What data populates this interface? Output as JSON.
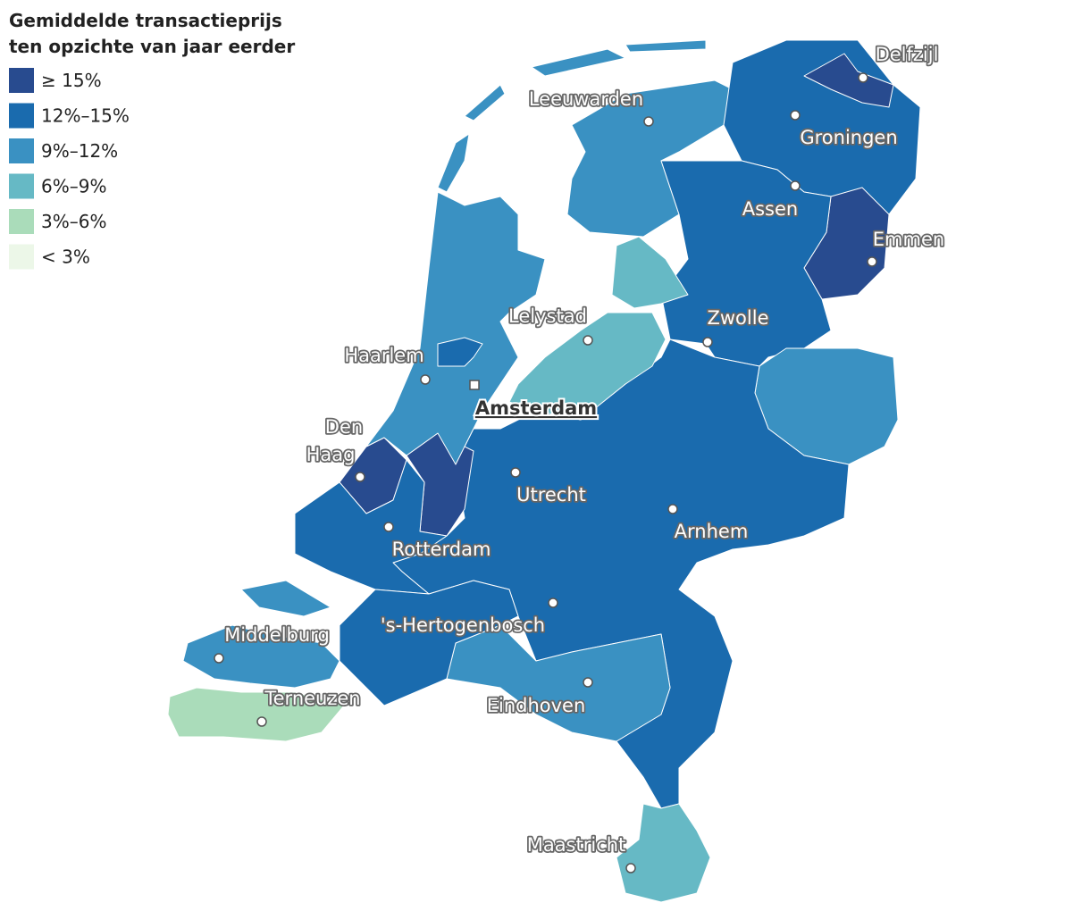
{
  "legend": {
    "title": [
      "Gemiddelde transactieprijs",
      "ten opzichte van jaar eerder"
    ],
    "items": [
      {
        "label": "≥ 15%",
        "color": "#284b8f"
      },
      {
        "label": "12%–15%",
        "color": "#1a6bae"
      },
      {
        "label": "9%–12%",
        "color": "#3a91c2"
      },
      {
        "label": "6%–9%",
        "color": "#66b9c5"
      },
      {
        "label": "3%–6%",
        "color": "#aadcba"
      },
      {
        "label": "< 3%",
        "color": "#ecf7e8"
      }
    ]
  },
  "cities": [
    {
      "name": "Delfzijl"
    },
    {
      "name": "Leeuwarden"
    },
    {
      "name": "Groningen"
    },
    {
      "name": "Assen"
    },
    {
      "name": "Emmen"
    },
    {
      "name": "Lelystad"
    },
    {
      "name": "Zwolle"
    },
    {
      "name": "Haarlem"
    },
    {
      "name": "Amsterdam"
    },
    {
      "name_lines": [
        "Den",
        "Haag"
      ]
    },
    {
      "name": "Utrecht"
    },
    {
      "name": "Rotterdam"
    },
    {
      "name": "Arnhem"
    },
    {
      "name": "'s-Hertogenbosch"
    },
    {
      "name": "Middelburg"
    },
    {
      "name": "Terneuzen"
    },
    {
      "name": "Eindhoven"
    },
    {
      "name": "Maastricht"
    }
  ]
}
